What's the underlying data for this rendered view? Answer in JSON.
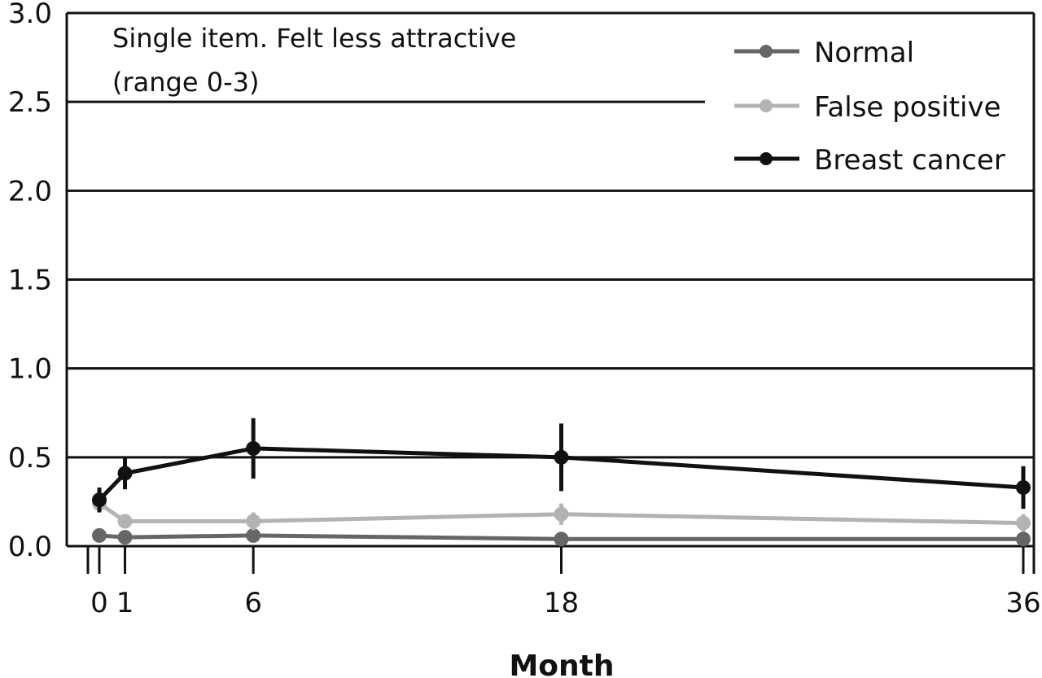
{
  "chart_data": {
    "type": "line",
    "title": "",
    "annotation": [
      "Single item. Felt less attractive",
      "(range 0-3)"
    ],
    "xlabel": "Month",
    "ylabel": "",
    "x": [
      0,
      1,
      6,
      18,
      36
    ],
    "x_tick_labels": [
      "0",
      "1",
      "6",
      "18",
      "36"
    ],
    "ylim": [
      0,
      3
    ],
    "y_tick_labels": [
      "0.0",
      "0.5",
      "1.0",
      "1.5",
      "2.0",
      "2.5",
      "3.0"
    ],
    "grid": "horizontal",
    "legend_position": "top-right",
    "series": [
      {
        "name": "Normal",
        "color": "#666666",
        "values": [
          0.06,
          0.05,
          0.06,
          0.04,
          0.04
        ],
        "error": [
          0.01,
          0.01,
          0.01,
          0.01,
          0.01
        ]
      },
      {
        "name": "False positive",
        "color": "#b3b3b3",
        "values": [
          0.24,
          0.14,
          0.14,
          0.18,
          0.13
        ],
        "error": [
          0.04,
          0.04,
          0.05,
          0.06,
          0.05
        ]
      },
      {
        "name": "Breast cancer",
        "color": "#111111",
        "values": [
          0.26,
          0.41,
          0.55,
          0.5,
          0.33
        ],
        "error": [
          0.07,
          0.09,
          0.17,
          0.19,
          0.12
        ]
      }
    ]
  }
}
